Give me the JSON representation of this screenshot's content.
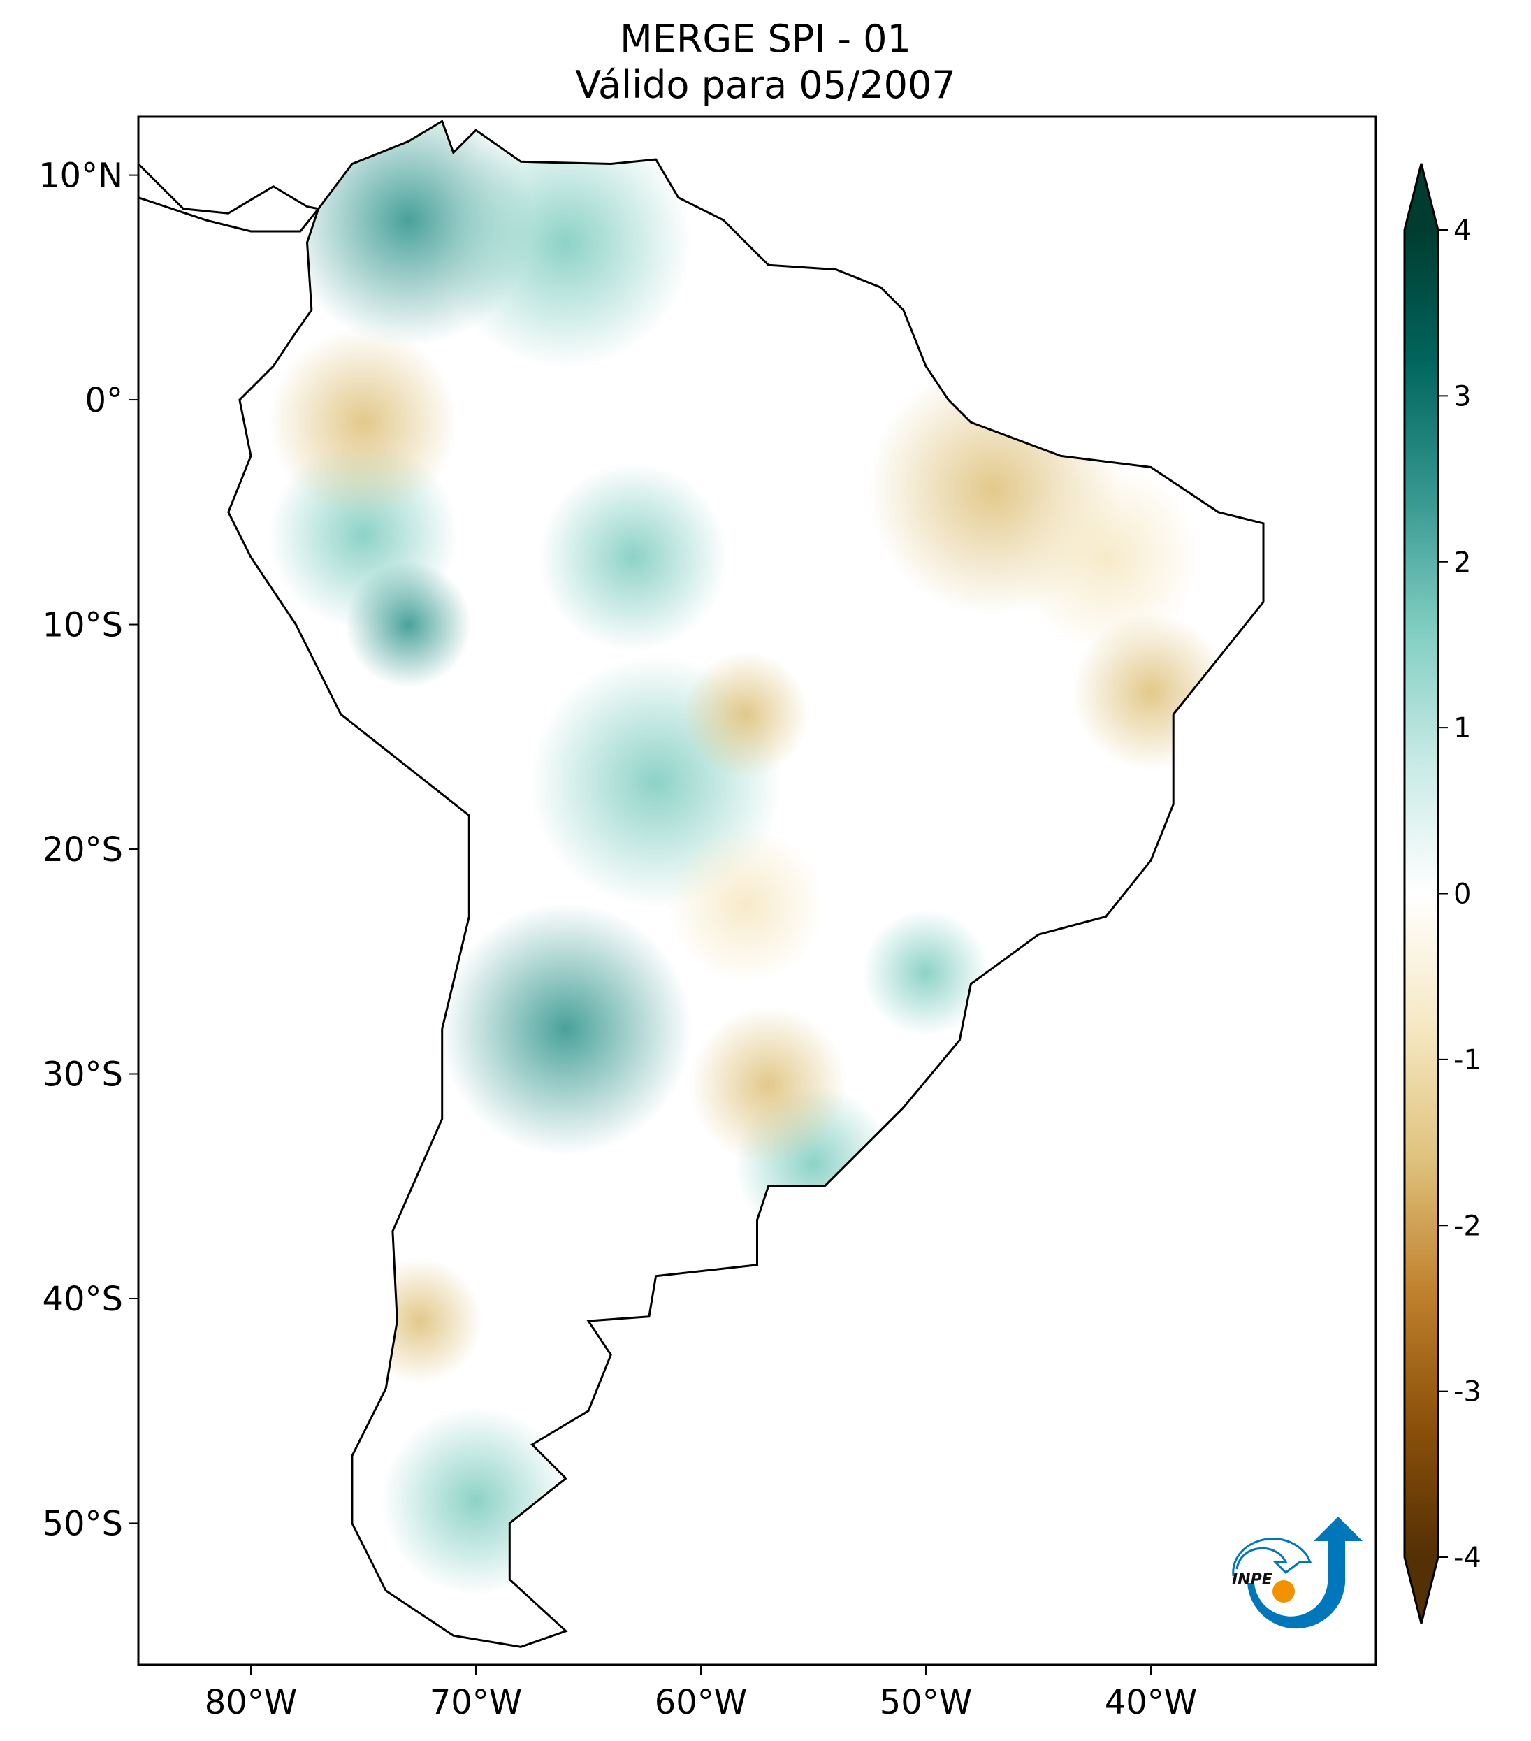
{
  "title": {
    "line1": "MERGE   SPI - 01",
    "line2": "Válido para 05/2007"
  },
  "map": {
    "lon_range": [
      -85,
      -30
    ],
    "lat_range": [
      -56.3,
      12.6
    ],
    "x_ticks": [
      {
        "lon": -80,
        "label": "80°W"
      },
      {
        "lon": -70,
        "label": "70°W"
      },
      {
        "lon": -60,
        "label": "60°W"
      },
      {
        "lon": -50,
        "label": "50°W"
      },
      {
        "lon": -40,
        "label": "40°W"
      }
    ],
    "y_ticks": [
      {
        "lat": 10,
        "label": "10°N"
      },
      {
        "lat": 0,
        "label": "0°"
      },
      {
        "lat": -10,
        "label": "10°S"
      },
      {
        "lat": -20,
        "label": "20°S"
      },
      {
        "lat": -30,
        "label": "30°S"
      },
      {
        "lat": -40,
        "label": "40°S"
      },
      {
        "lat": -50,
        "label": "50°S"
      }
    ]
  },
  "colorbar": {
    "colormap": "BrBG",
    "range": [
      -4,
      4
    ],
    "extend": "both",
    "ticks": [
      {
        "v": 4,
        "label": "4"
      },
      {
        "v": 3,
        "label": "3"
      },
      {
        "v": 2,
        "label": "2"
      },
      {
        "v": 1,
        "label": "1"
      },
      {
        "v": 0,
        "label": "0"
      },
      {
        "v": -1,
        "label": "-1"
      },
      {
        "v": -2,
        "label": "-2"
      },
      {
        "v": -3,
        "label": "-3"
      },
      {
        "v": -4,
        "label": "-4"
      }
    ],
    "colors": [
      "#543005",
      "#8c510a",
      "#bf812d",
      "#dfc27d",
      "#f6e8c3",
      "#ffffff",
      "#c7eae5",
      "#80cdc1",
      "#35978f",
      "#01665e",
      "#003c30"
    ]
  },
  "logo": {
    "text": "INPE",
    "blue": "#0077bb",
    "orange": "#f39200"
  }
}
